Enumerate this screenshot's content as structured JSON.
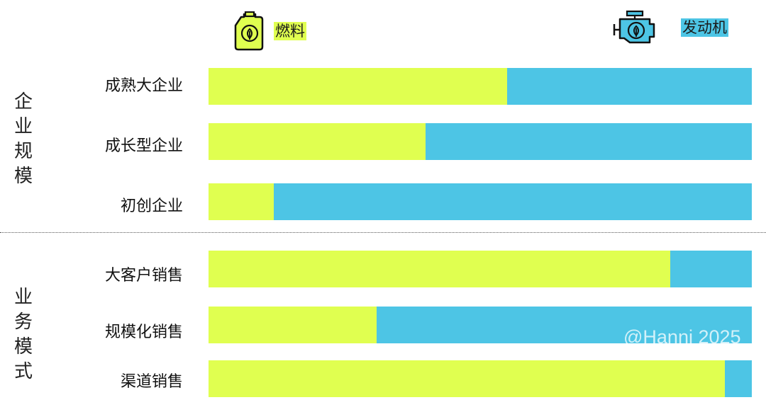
{
  "colors": {
    "fuel": "#e0ff50",
    "engine": "#4dc5e5"
  },
  "legend": {
    "fuel": {
      "label": "燃料",
      "icon": "fuel-can-leaf-icon"
    },
    "engine": {
      "label": "发动机",
      "icon": "engine-leaf-icon"
    }
  },
  "groups": [
    {
      "label": "企业规模"
    },
    {
      "label": "业务模式"
    }
  ],
  "chart_data": {
    "type": "bar",
    "orientation": "horizontal",
    "stacked": true,
    "normalized": true,
    "categories": [
      "成熟大企业",
      "成长型企业",
      "初创企业",
      "大客户销售",
      "规模化销售",
      "渠道销售"
    ],
    "series": [
      {
        "name": "燃料",
        "values": [
          0.55,
          0.4,
          0.12,
          0.85,
          0.31,
          0.95
        ]
      },
      {
        "name": "发动机",
        "values": [
          0.45,
          0.6,
          0.88,
          0.15,
          0.69,
          0.05
        ]
      }
    ],
    "legend_position": "top"
  },
  "watermark": "@Hanni 2025"
}
